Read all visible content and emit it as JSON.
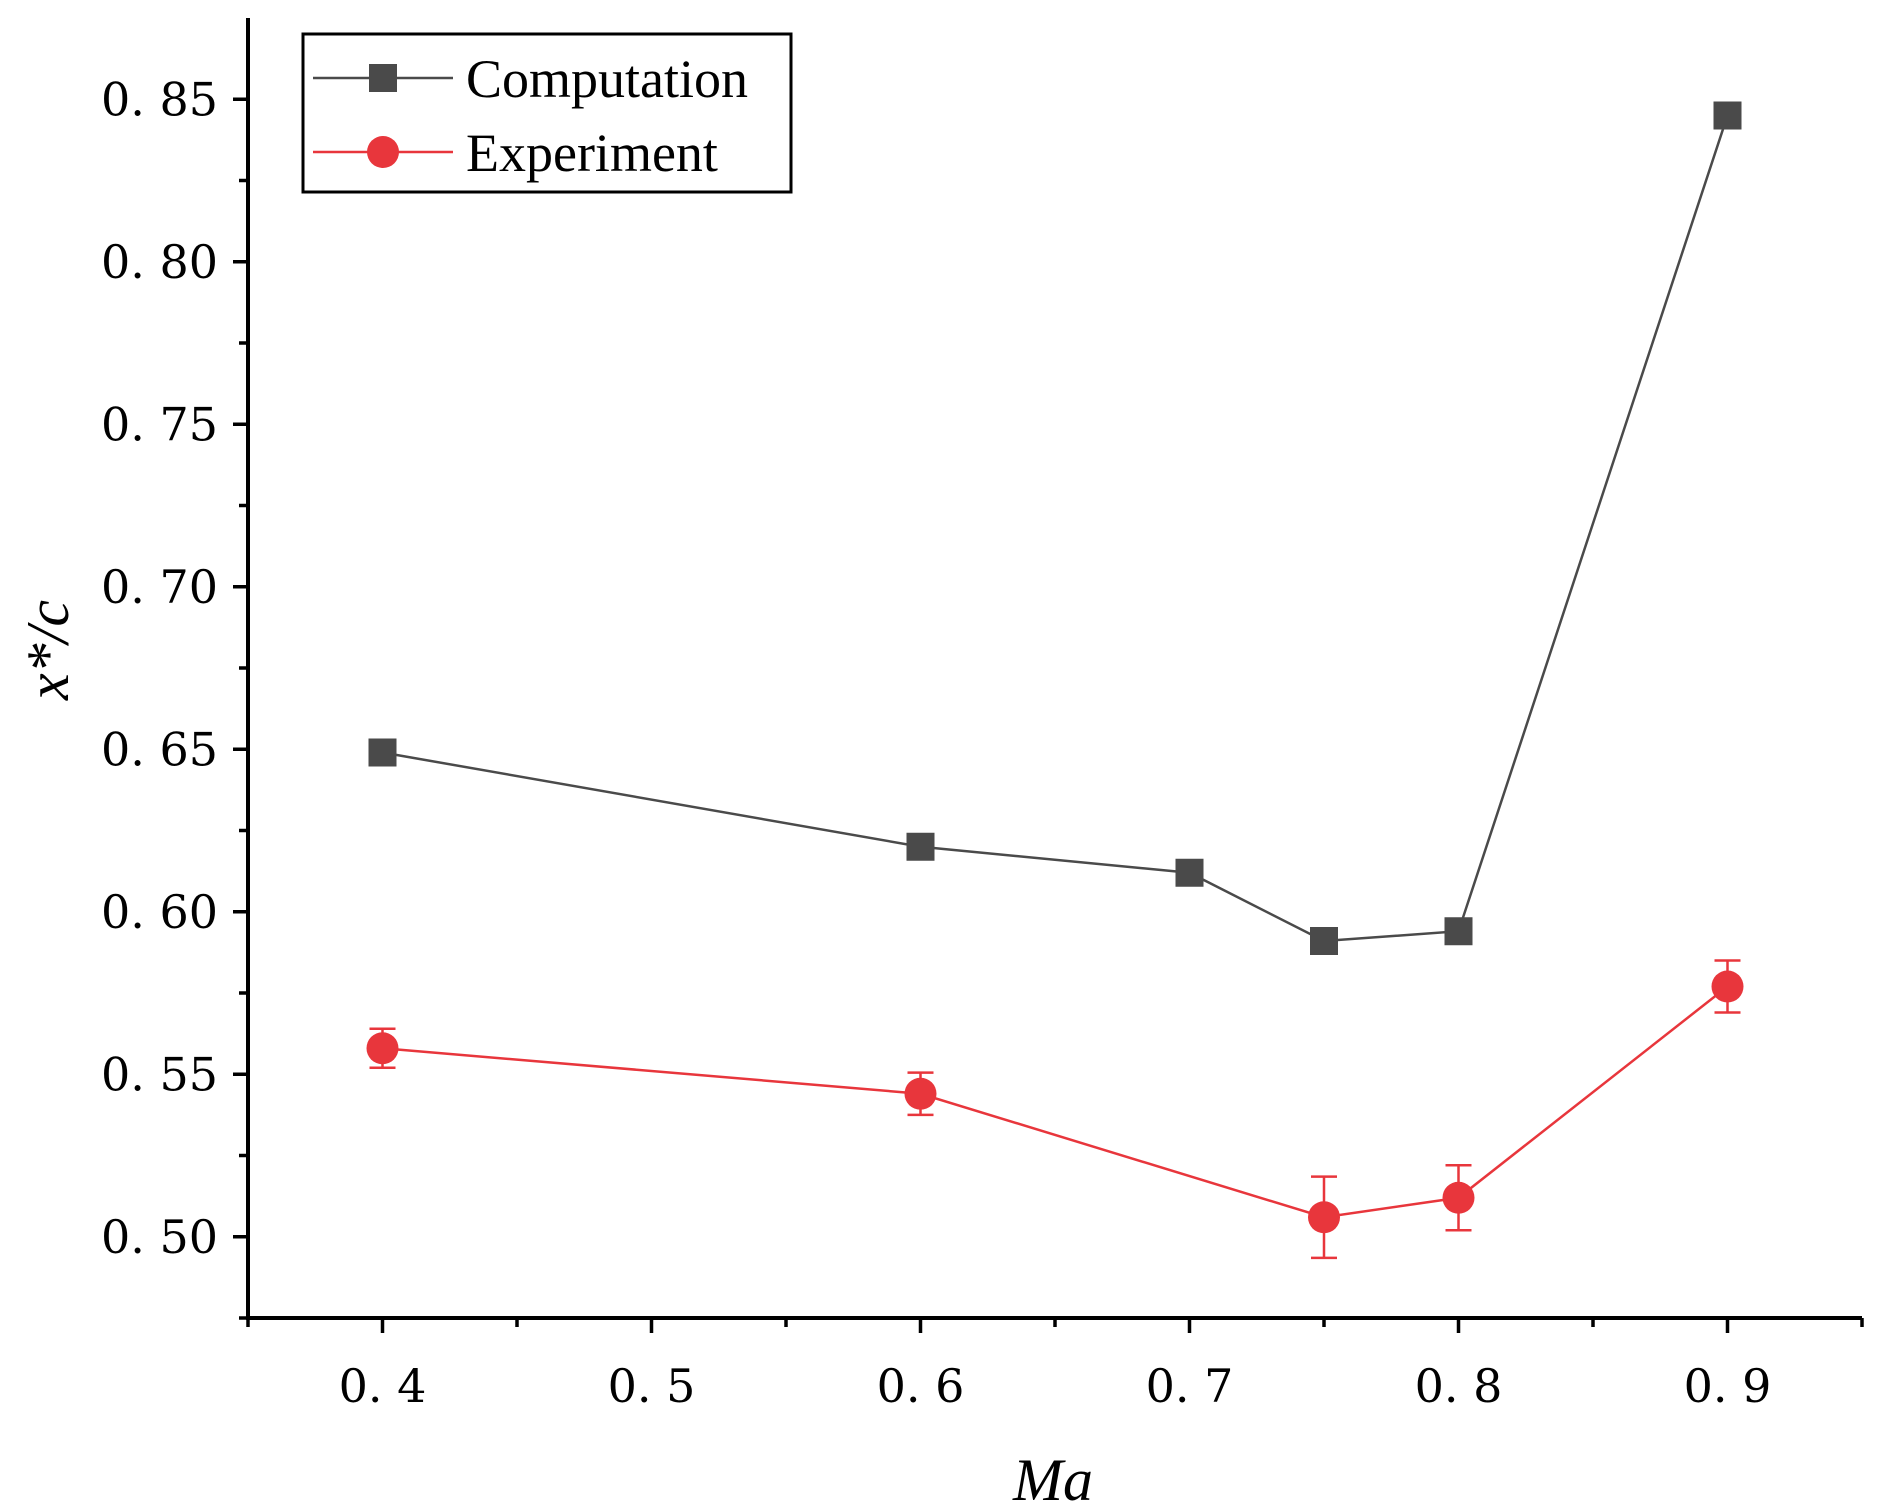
{
  "chart_data": {
    "type": "line",
    "xlabel": "Ma",
    "ylabel": "x*/c",
    "xlim": [
      0.35,
      0.95
    ],
    "ylim": [
      0.475,
      0.875
    ],
    "xticks": [
      0.4,
      0.5,
      0.6,
      0.7,
      0.8,
      0.9
    ],
    "xtick_labels": [
      "0. 4",
      "0. 5",
      "0. 6",
      "0. 7",
      "0. 8",
      "0. 9"
    ],
    "yticks": [
      0.5,
      0.55,
      0.6,
      0.65,
      0.7,
      0.75,
      0.8,
      0.85
    ],
    "ytick_labels": [
      "0. 50",
      "0. 55",
      "0. 60",
      "0. 65",
      "0. 70",
      "0. 75",
      "0. 80",
      "0. 85"
    ],
    "grid": false,
    "legend_position": "top-left",
    "series": [
      {
        "name": "Computation",
        "color": "#4a4a4a",
        "marker": "square",
        "x": [
          0.4,
          0.6,
          0.7,
          0.75,
          0.8,
          0.9
        ],
        "y": [
          0.649,
          0.62,
          0.612,
          0.591,
          0.594,
          0.845
        ]
      },
      {
        "name": "Experiment",
        "color": "#e8363c",
        "marker": "circle",
        "x": [
          0.4,
          0.6,
          0.7,
          0.75,
          0.8,
          0.9
        ],
        "y": [
          0.558,
          0.544,
          null,
          0.506,
          0.512,
          0.577
        ],
        "x_points": [
          0.4,
          0.6,
          0.75,
          0.8,
          0.9
        ],
        "y_points": [
          0.558,
          0.544,
          0.506,
          0.512,
          0.577
        ],
        "error": [
          0.006,
          0.0065,
          0.0125,
          0.01,
          0.008
        ]
      }
    ]
  }
}
